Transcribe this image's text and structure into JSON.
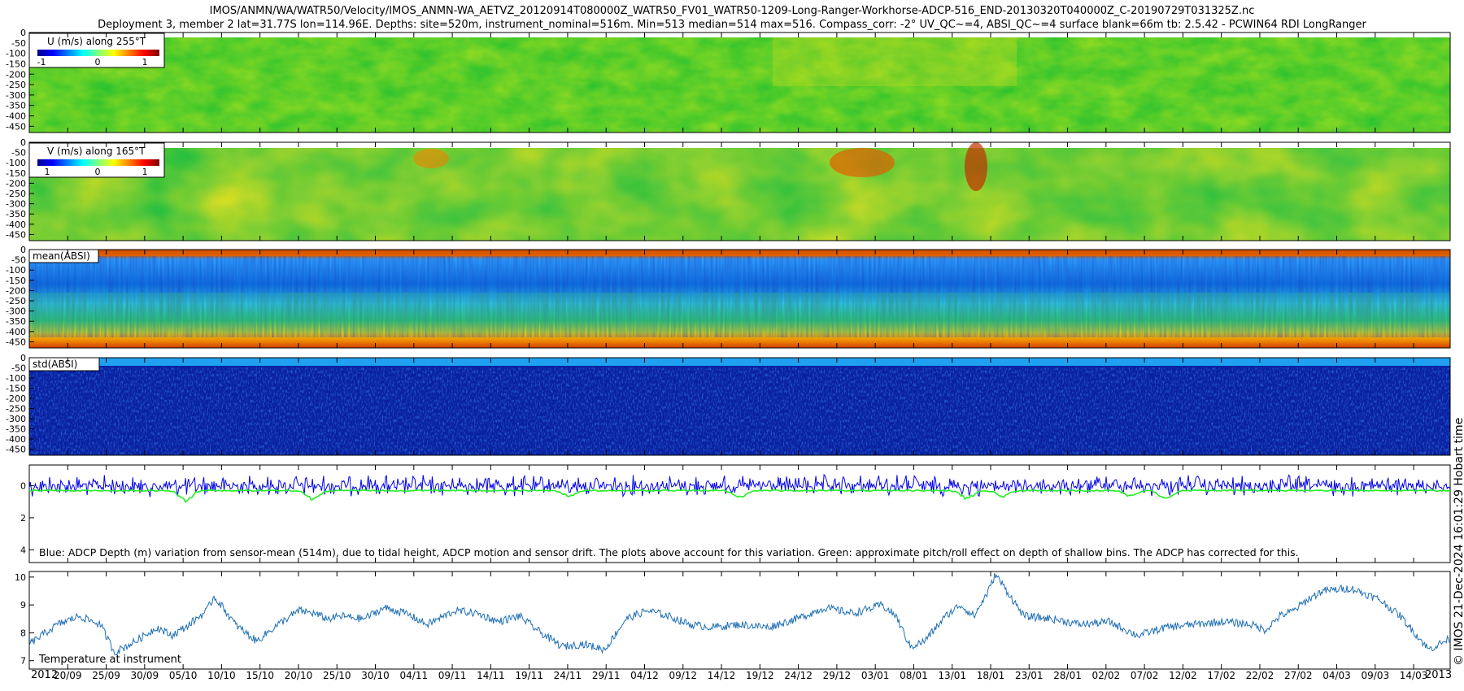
{
  "header": {
    "title_line1": "IMOS/ANMN/WA/WATR50/Velocity/IMOS_ANMN-WA_AETVZ_20120914T080000Z_WATR50_FV01_WATR50-1209-Long-Ranger-Workhorse-ADCP-516_END-20130320T040000Z_C-20190729T031325Z.nc",
    "title_line2": "Deployment 3, member 2 lat=31.77S lon=114.96E. Depths: site=520m, instrument_nominal=516m. Min=513 median=514 max=516. Compass_corr: -2° UV_QC~=4, ABSI_QC~=4 surface blank=66m tb: 2.5.42 - PCWIN64 RDI LongRanger"
  },
  "side_note": "© IMOS 21-Dec-2024 16:01:29 Hobart time",
  "colors": {
    "adcp_depth": "#0000ee",
    "pitch_roll": "#22ee22",
    "temperature": "#1f6fb4"
  },
  "chart_data": [
    {
      "type": "heatmap",
      "label": "U (m/s) along 255°T",
      "colorbar_ticks": [
        "-1",
        "0",
        "1"
      ],
      "y_ticks": [
        "0",
        "-50",
        "-100",
        "-150",
        "-200",
        "-250",
        "-300",
        "-350",
        "-400",
        "-450"
      ],
      "ylim": [
        -480,
        0
      ]
    },
    {
      "type": "heatmap",
      "label": "V (m/s) along 165°T",
      "colorbar_ticks": [
        "1",
        "0",
        "1"
      ],
      "y_ticks": [
        "0",
        "-50",
        "-100",
        "-150",
        "-200",
        "-250",
        "-300",
        "-350",
        "-400",
        "-450"
      ],
      "ylim": [
        -480,
        0
      ]
    },
    {
      "type": "heatmap",
      "label": "mean(ABSI)",
      "y_ticks": [
        "0",
        "-50",
        "-100",
        "-150",
        "-200",
        "-250",
        "-300",
        "-350",
        "-400",
        "-450"
      ],
      "ylim": [
        -480,
        0
      ]
    },
    {
      "type": "heatmap",
      "label": "std(ABSI)",
      "y_ticks": [
        "0",
        "-50",
        "-100",
        "-150",
        "-200",
        "-250",
        "-300",
        "-350",
        "-400",
        "-450"
      ],
      "ylim": [
        -480,
        0
      ]
    },
    {
      "type": "line",
      "label": "Blue: ADCP Depth (m) variation from sensor-mean (514m), due to tidal height, ADCP motion and sensor drift. The plots above account for this variation. Green: approximate pitch/roll effect on depth of shallow bins. The ADCP has corrected for this.",
      "y_ticks": [
        "0",
        "2",
        "4"
      ],
      "ylim": [
        4.8,
        -1.3
      ],
      "series": [
        {
          "name": "ADCP depth variation",
          "center": 0,
          "amplitude": 0.7
        },
        {
          "name": "Pitch/roll effect",
          "baseline": 0.3,
          "dips": [
            [
              0.11,
              0.7
            ],
            [
              0.2,
              0.6
            ],
            [
              0.38,
              0.4
            ],
            [
              0.5,
              0.5
            ],
            [
              0.66,
              0.6
            ],
            [
              0.685,
              0.4
            ],
            [
              0.775,
              0.4
            ],
            [
              0.8,
              0.6
            ]
          ]
        }
      ]
    },
    {
      "type": "line",
      "label": "Temperature at instrument",
      "y_ticks": [
        "7",
        "8",
        "9",
        "10"
      ],
      "ylim": [
        6.7,
        10.2
      ],
      "series": [
        {
          "name": "Temperature",
          "x": [
            0,
            0.02,
            0.035,
            0.05,
            0.06,
            0.075,
            0.09,
            0.1,
            0.11,
            0.125,
            0.13,
            0.135,
            0.145,
            0.16,
            0.175,
            0.19,
            0.2,
            0.21,
            0.22,
            0.235,
            0.25,
            0.265,
            0.28,
            0.3,
            0.315,
            0.33,
            0.345,
            0.36,
            0.375,
            0.39,
            0.405,
            0.42,
            0.435,
            0.45,
            0.465,
            0.48,
            0.5,
            0.52,
            0.54,
            0.56,
            0.58,
            0.6,
            0.61,
            0.62,
            0.63,
            0.645,
            0.655,
            0.665,
            0.675,
            0.68,
            0.7,
            0.72,
            0.74,
            0.76,
            0.78,
            0.8,
            0.82,
            0.84,
            0.86,
            0.87,
            0.88,
            0.89,
            0.9,
            0.91,
            0.93,
            0.95,
            0.965,
            0.975,
            0.985,
            1.0
          ],
          "values": [
            7.6,
            8.3,
            8.6,
            8.3,
            7.3,
            7.7,
            8.2,
            7.9,
            8.2,
            8.8,
            9.3,
            9.0,
            8.3,
            7.7,
            8.3,
            8.8,
            8.7,
            8.5,
            8.6,
            8.5,
            8.9,
            8.7,
            8.3,
            8.8,
            8.7,
            8.4,
            8.6,
            8.0,
            7.5,
            7.6,
            7.4,
            8.5,
            8.8,
            8.6,
            8.3,
            8.2,
            8.3,
            8.2,
            8.5,
            8.9,
            8.7,
            9.0,
            8.6,
            7.5,
            7.7,
            8.6,
            9.0,
            8.6,
            9.5,
            10.1,
            8.6,
            8.5,
            8.3,
            8.4,
            7.9,
            8.2,
            8.3,
            8.4,
            8.3,
            8.1,
            8.6,
            8.8,
            9.2,
            9.5,
            9.6,
            9.2,
            8.6,
            8.0,
            7.4,
            7.8
          ]
        }
      ]
    }
  ],
  "time_axis": {
    "year_start": "2012",
    "year_end": "2013",
    "tick_labels": [
      "20/09",
      "25/09",
      "30/09",
      "05/10",
      "10/10",
      "15/10",
      "20/10",
      "25/10",
      "30/10",
      "04/11",
      "09/11",
      "14/11",
      "19/11",
      "24/11",
      "29/11",
      "04/12",
      "09/12",
      "14/12",
      "19/12",
      "24/12",
      "29/12",
      "03/01",
      "08/01",
      "13/01",
      "18/01",
      "23/01",
      "28/01",
      "02/02",
      "07/02",
      "12/02",
      "17/02",
      "22/02",
      "27/02",
      "04/03",
      "09/03",
      "14/03"
    ]
  }
}
